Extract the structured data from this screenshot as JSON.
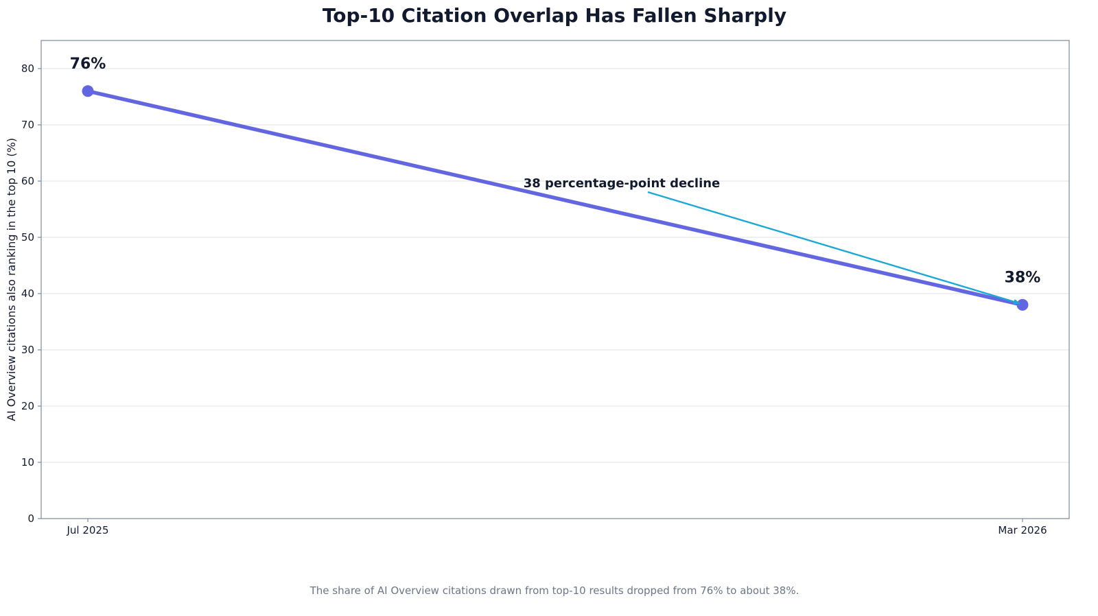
{
  "chart_data": {
    "type": "line",
    "title": "Top-10 Citation Overlap Has Fallen Sharply",
    "xlabel": "",
    "ylabel": "AI Overview citations also ranking in the top 10 (%)",
    "categories": [
      "Jul 2025",
      "Mar 2026"
    ],
    "series": [
      {
        "values": [
          76,
          38
        ]
      }
    ],
    "data_labels": [
      "76%",
      "38%"
    ],
    "ylim": [
      0,
      85
    ],
    "yticks": [
      0,
      10,
      20,
      30,
      40,
      50,
      60,
      70,
      80
    ],
    "grid": "horizontal",
    "annotation": {
      "text": "38 percentage-point decline",
      "points_to": "Mar 2026"
    },
    "caption": "The share of AI Overview citations drawn from top-10 results dropped from 76% to about 38%."
  },
  "colors": {
    "line": "#6366e1",
    "marker": "#6366e1",
    "annotation_arrow": "#1ba8d8",
    "grid": "#e3e6ea",
    "axes_frame": "#7a8a9c",
    "text": "#111a2e",
    "caption": "#6b7689"
  }
}
